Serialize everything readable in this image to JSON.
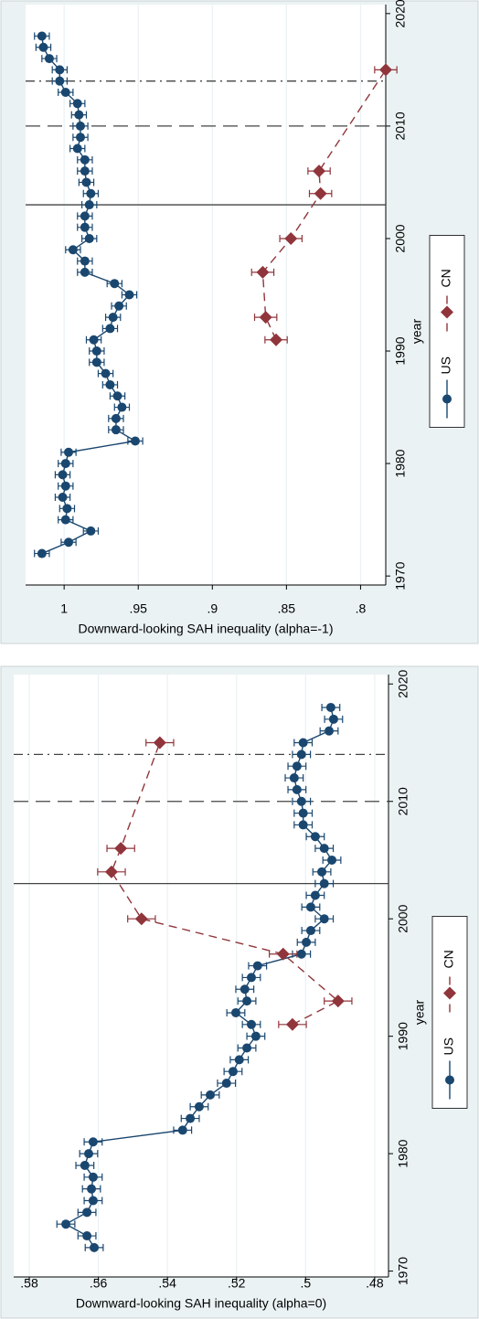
{
  "chart_data": [
    {
      "type": "line",
      "y_label": "Downward-looking SAH inequality (alpha=-1)",
      "x_label": "year",
      "xlim": [
        1969.2,
        2020.8
      ],
      "xticks": [
        1970,
        1980,
        1990,
        2000,
        2010,
        2020
      ],
      "ylim": [
        0.783,
        1.026
      ],
      "yticks": [
        {
          "value": 0.8,
          "label": ".8"
        },
        {
          "value": 0.85,
          "label": ".85"
        },
        {
          "value": 0.9,
          "label": ".9"
        },
        {
          "value": 0.95,
          "label": ".95"
        },
        1
      ],
      "grid": true,
      "legend": "bottom",
      "reference_lines": [
        {
          "x": 2003,
          "style": "solid"
        },
        {
          "x": 2010,
          "style": "longdash"
        },
        {
          "x": 2014,
          "style": "dashdot"
        }
      ],
      "series": [
        {
          "name": "US",
          "color": "#1a476f",
          "marker": "circle",
          "dash": "solid",
          "error": 0.005,
          "x": [
            1972,
            1973,
            1974,
            1975,
            1976,
            1977,
            1978,
            1979,
            1980,
            1981,
            1982,
            1983,
            1984,
            1985,
            1986,
            1987,
            1988,
            1989,
            1990,
            1991,
            1992,
            1993,
            1994,
            1995,
            1996,
            1997,
            1998,
            1999,
            2000,
            2001,
            2002,
            2003,
            2004,
            2005,
            2006,
            2007,
            2008,
            2009,
            2010,
            2011,
            2012,
            2013,
            2014,
            2015,
            2016,
            2017,
            2018
          ],
          "values": [
            1.015,
            0.997,
            0.982,
            0.999,
            0.998,
            1.001,
            0.999,
            1.001,
            0.999,
            0.997,
            0.952,
            0.965,
            0.965,
            0.961,
            0.964,
            0.969,
            0.972,
            0.978,
            0.978,
            0.98,
            0.969,
            0.967,
            0.963,
            0.956,
            0.966,
            0.986,
            0.986,
            0.994,
            0.983,
            0.986,
            0.986,
            0.983,
            0.982,
            0.985,
            0.986,
            0.986,
            0.991,
            0.989,
            0.989,
            0.99,
            0.991,
            0.999,
            1.003,
            1.003,
            1.01,
            1.014,
            1.015
          ]
        },
        {
          "name": "CN",
          "color": "#90353b",
          "marker": "diamond",
          "dash": "dash",
          "error": 0.0075,
          "x": [
            1991,
            1993,
            1997,
            2000,
            2004,
            2006,
            2015
          ],
          "values": [
            0.857,
            0.864,
            0.866,
            0.847,
            0.827,
            0.828,
            0.783
          ]
        }
      ]
    },
    {
      "type": "line",
      "y_label": "Downward-looking SAH inequality (alpha=0)",
      "x_label": "year",
      "xlim": [
        1969.5,
        2020.8
      ],
      "xticks": [
        1970,
        1980,
        1990,
        2000,
        2010,
        2020
      ],
      "ylim": [
        0.476,
        0.5845
      ],
      "yticks": [
        {
          "value": 0.48,
          "label": ".48"
        },
        {
          "value": 0.5,
          "label": ".5"
        },
        {
          "value": 0.52,
          "label": ".52"
        },
        {
          "value": 0.54,
          "label": ".54"
        },
        {
          "value": 0.56,
          "label": ".56"
        },
        {
          "value": 0.58,
          "label": ".58"
        }
      ],
      "grid": true,
      "legend": "bottom",
      "reference_lines": [
        {
          "x": 2003,
          "style": "solid"
        },
        {
          "x": 2010,
          "style": "longdash"
        },
        {
          "x": 2014,
          "style": "dashdot"
        }
      ],
      "series": [
        {
          "name": "US",
          "color": "#1a476f",
          "marker": "circle",
          "dash": "solid",
          "error": 0.0026,
          "x": [
            1972,
            1973,
            1974,
            1975,
            1976,
            1977,
            1978,
            1979,
            1980,
            1981,
            1982,
            1983,
            1984,
            1985,
            1986,
            1987,
            1988,
            1989,
            1990,
            1991,
            1992,
            1993,
            1994,
            1995,
            1996,
            1997,
            1998,
            1999,
            2000,
            2001,
            2002,
            2003,
            2004,
            2005,
            2006,
            2007,
            2008,
            2009,
            2010,
            2011,
            2012,
            2013,
            2014,
            2015,
            2016,
            2017,
            2018
          ],
          "values": [
            0.5612,
            0.5633,
            0.5694,
            0.5633,
            0.5615,
            0.562,
            0.5615,
            0.5639,
            0.5628,
            0.5615,
            0.5356,
            0.5334,
            0.5308,
            0.5276,
            0.5229,
            0.521,
            0.5192,
            0.517,
            0.5144,
            0.5157,
            0.5202,
            0.517,
            0.5176,
            0.5157,
            0.5139,
            0.5012,
            0.4998,
            0.4985,
            0.4946,
            0.4985,
            0.4972,
            0.4946,
            0.4953,
            0.4924,
            0.4946,
            0.4972,
            0.5007,
            0.5007,
            0.5012,
            0.5025,
            0.5033,
            0.5025,
            0.5012,
            0.5007,
            0.4932,
            0.4919,
            0.4927
          ]
        },
        {
          "name": "CN",
          "color": "#90353b",
          "marker": "diamond",
          "dash": "dash",
          "error": 0.004,
          "x": [
            1991,
            1993,
            1997,
            2000,
            2004,
            2006,
            2015
          ],
          "values": [
            0.5038,
            0.4906,
            0.5065,
            0.5475,
            0.5562,
            0.5535,
            0.5422
          ]
        }
      ]
    }
  ]
}
